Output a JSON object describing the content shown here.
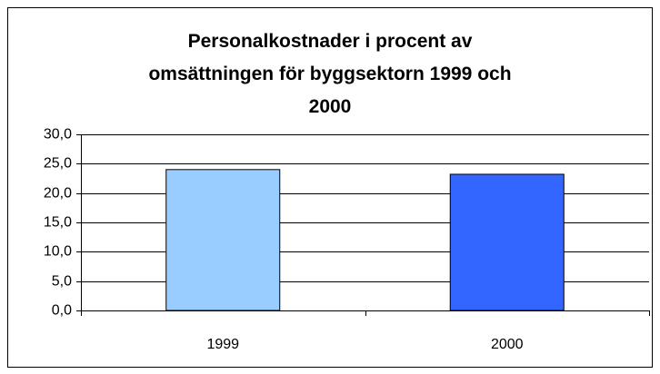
{
  "chart_data": {
    "type": "bar",
    "title": "Personalkostnader i procent av omsättningen för byggsektorn 1999 och 2000",
    "categories": [
      "1999",
      "2000"
    ],
    "values": [
      24.0,
      23.2
    ],
    "colors": [
      "#99ccff",
      "#3366ff"
    ],
    "ylim": [
      0,
      30
    ],
    "yticks": [
      {
        "value": 0,
        "label": "0,0"
      },
      {
        "value": 5,
        "label": "5,0"
      },
      {
        "value": 10,
        "label": "10,0"
      },
      {
        "value": 15,
        "label": "15,0"
      },
      {
        "value": 20,
        "label": "20,0"
      },
      {
        "value": 25,
        "label": "25,0"
      },
      {
        "value": 30,
        "label": "30,0"
      }
    ],
    "grid": true
  }
}
